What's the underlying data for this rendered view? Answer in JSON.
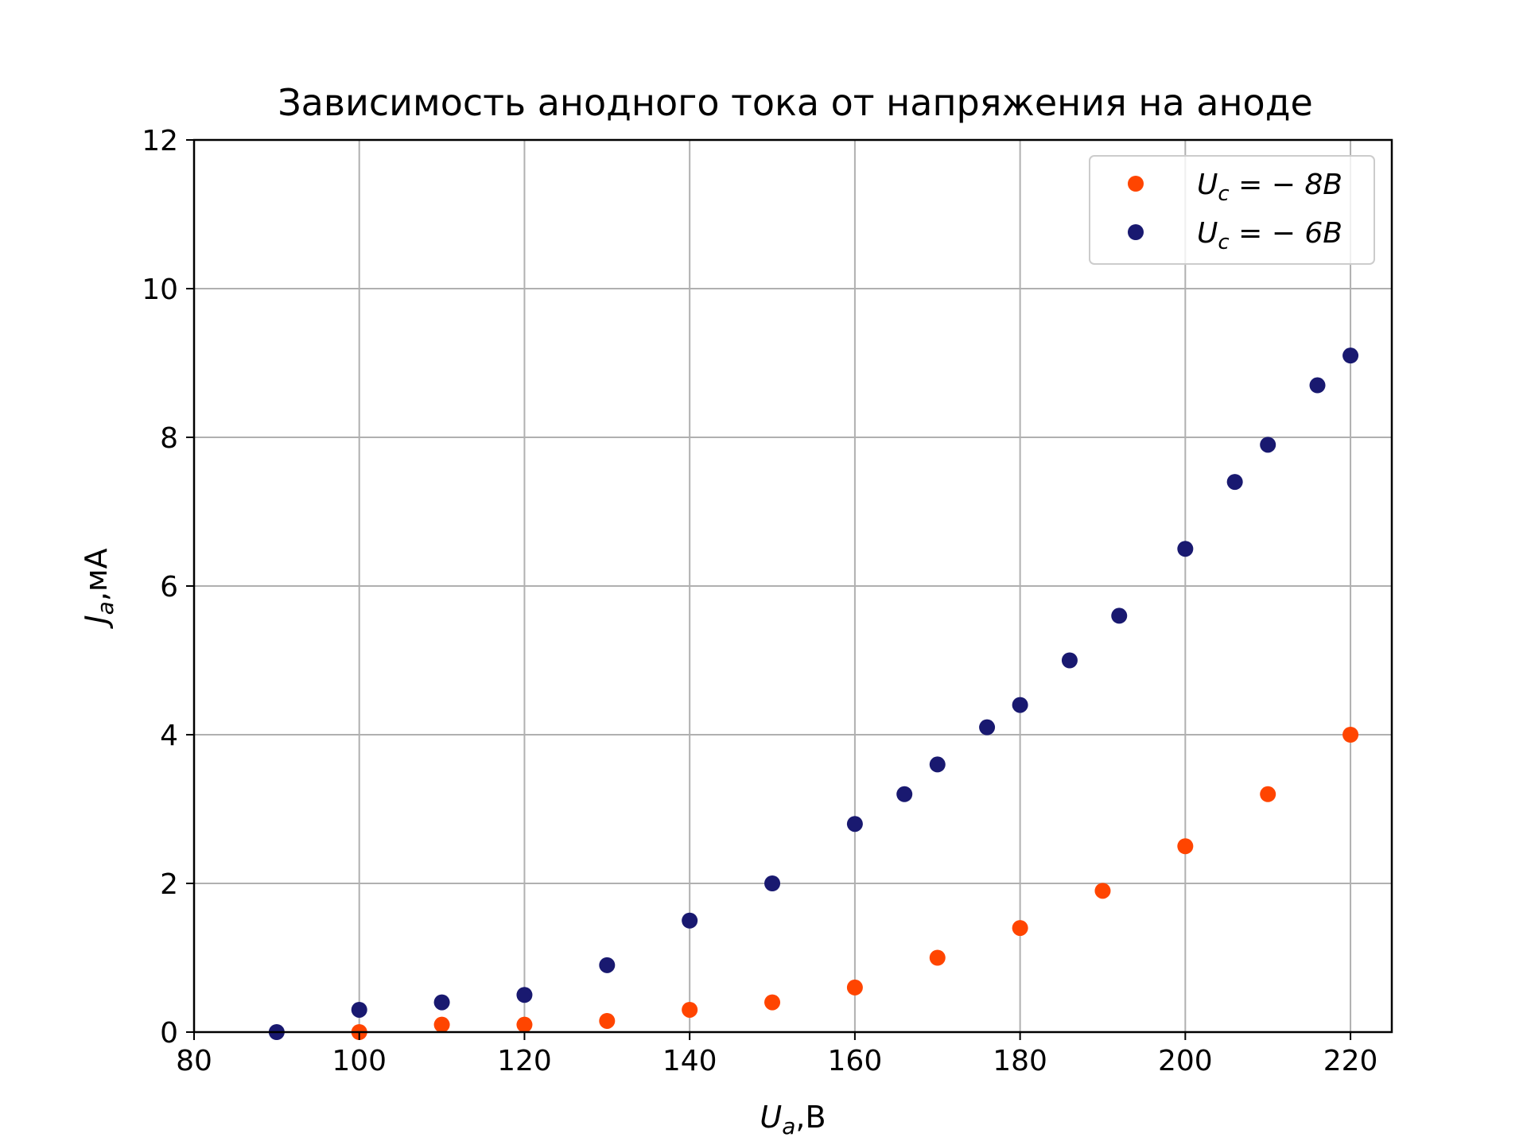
{
  "chart_data": {
    "type": "scatter",
    "title": "Зависимость анодного тока от напряжения на аноде",
    "xlabel": {
      "main": "U",
      "sub": "a",
      "unit": ",В"
    },
    "ylabel": {
      "main": "J",
      "sub": "a",
      "unit": ",мА"
    },
    "xlim": [
      80,
      225
    ],
    "ylim": [
      0,
      12
    ],
    "xticks": [
      80,
      100,
      120,
      140,
      160,
      180,
      200,
      220
    ],
    "yticks": [
      0,
      2,
      4,
      6,
      8,
      10,
      12
    ],
    "grid": true,
    "legend_position": "top-right",
    "series": [
      {
        "name": "U_c = − 8B",
        "legend": {
          "main": "U",
          "sub": "c",
          "rest": " = − 8B"
        },
        "color": "#ff4500",
        "points": [
          [
            100,
            0.0
          ],
          [
            110,
            0.1
          ],
          [
            120,
            0.1
          ],
          [
            130,
            0.15
          ],
          [
            140,
            0.3
          ],
          [
            150,
            0.4
          ],
          [
            160,
            0.6
          ],
          [
            170,
            1.0
          ],
          [
            180,
            1.4
          ],
          [
            190,
            1.9
          ],
          [
            200,
            2.5
          ],
          [
            210,
            3.2
          ],
          [
            220,
            4.0
          ]
        ]
      },
      {
        "name": "U_c = − 6B",
        "legend": {
          "main": "U",
          "sub": "c",
          "rest": " = − 6B"
        },
        "color": "#191970",
        "points": [
          [
            90,
            0.0
          ],
          [
            100,
            0.3
          ],
          [
            110,
            0.4
          ],
          [
            120,
            0.5
          ],
          [
            130,
            0.9
          ],
          [
            140,
            1.5
          ],
          [
            150,
            2.0
          ],
          [
            160,
            2.8
          ],
          [
            166,
            3.2
          ],
          [
            170,
            3.6
          ],
          [
            176,
            4.1
          ],
          [
            180,
            4.4
          ],
          [
            186,
            5.0
          ],
          [
            192,
            5.6
          ],
          [
            200,
            6.5
          ],
          [
            206,
            7.4
          ],
          [
            210,
            7.9
          ],
          [
            216,
            8.7
          ],
          [
            220,
            9.1
          ]
        ]
      }
    ]
  }
}
